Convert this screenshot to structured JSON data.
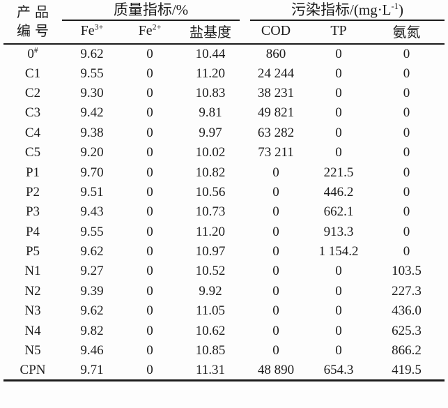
{
  "table": {
    "id_header": {
      "line1": "产品",
      "line2": "编号"
    },
    "groups": [
      {
        "key": "quality",
        "pre": "质量指标/%",
        "sup": "",
        "post": ""
      },
      {
        "key": "pollution",
        "pre": "污染指标/(mg·L",
        "sup": "-1",
        "post": ")"
      }
    ],
    "columns": [
      {
        "key": "fe3",
        "base": "Fe",
        "sup": "3+"
      },
      {
        "key": "fe2",
        "base": "Fe",
        "sup": "2+"
      },
      {
        "key": "basicity",
        "base": "盐基度",
        "sup": ""
      },
      {
        "key": "cod",
        "base": "COD",
        "sup": ""
      },
      {
        "key": "tp",
        "base": "TP",
        "sup": ""
      },
      {
        "key": "ammonia",
        "base": "氨氮",
        "sup": ""
      }
    ],
    "rows": [
      {
        "id": "0",
        "id_sup": "#",
        "values": [
          "9.62",
          "0",
          "10.44",
          "860",
          "0",
          "0"
        ]
      },
      {
        "id": "C1",
        "id_sup": "",
        "values": [
          "9.55",
          "0",
          "11.20",
          "24 244",
          "0",
          "0"
        ]
      },
      {
        "id": "C2",
        "id_sup": "",
        "values": [
          "9.30",
          "0",
          "10.83",
          "38 231",
          "0",
          "0"
        ]
      },
      {
        "id": "C3",
        "id_sup": "",
        "values": [
          "9.42",
          "0",
          "9.81",
          "49 821",
          "0",
          "0"
        ]
      },
      {
        "id": "C4",
        "id_sup": "",
        "values": [
          "9.38",
          "0",
          "9.97",
          "63 282",
          "0",
          "0"
        ]
      },
      {
        "id": "C5",
        "id_sup": "",
        "values": [
          "9.20",
          "0",
          "10.02",
          "73 211",
          "0",
          "0"
        ]
      },
      {
        "id": "P1",
        "id_sup": "",
        "values": [
          "9.70",
          "0",
          "10.82",
          "0",
          "221.5",
          "0"
        ]
      },
      {
        "id": "P2",
        "id_sup": "",
        "values": [
          "9.51",
          "0",
          "10.56",
          "0",
          "446.2",
          "0"
        ]
      },
      {
        "id": "P3",
        "id_sup": "",
        "values": [
          "9.43",
          "0",
          "10.73",
          "0",
          "662.1",
          "0"
        ]
      },
      {
        "id": "P4",
        "id_sup": "",
        "values": [
          "9.55",
          "0",
          "11.20",
          "0",
          "913.3",
          "0"
        ]
      },
      {
        "id": "P5",
        "id_sup": "",
        "values": [
          "9.62",
          "0",
          "10.97",
          "0",
          "1 154.2",
          "0"
        ]
      },
      {
        "id": "N1",
        "id_sup": "",
        "values": [
          "9.27",
          "0",
          "10.52",
          "0",
          "0",
          "103.5"
        ]
      },
      {
        "id": "N2",
        "id_sup": "",
        "values": [
          "9.39",
          "0",
          "9.92",
          "0",
          "0",
          "227.3"
        ]
      },
      {
        "id": "N3",
        "id_sup": "",
        "values": [
          "9.62",
          "0",
          "11.05",
          "0",
          "0",
          "436.0"
        ]
      },
      {
        "id": "N4",
        "id_sup": "",
        "values": [
          "9.82",
          "0",
          "10.62",
          "0",
          "0",
          "625.3"
        ]
      },
      {
        "id": "N5",
        "id_sup": "",
        "values": [
          "9.46",
          "0",
          "10.85",
          "0",
          "0",
          "866.2"
        ]
      },
      {
        "id": "CPN",
        "id_sup": "",
        "values": [
          "9.71",
          "0",
          "11.31",
          "48 890",
          "654.3",
          "419.5"
        ]
      }
    ],
    "colors": {
      "text": "#1c1c1c",
      "rule": "#1c1c1c",
      "background": "#fdfdfd"
    }
  }
}
